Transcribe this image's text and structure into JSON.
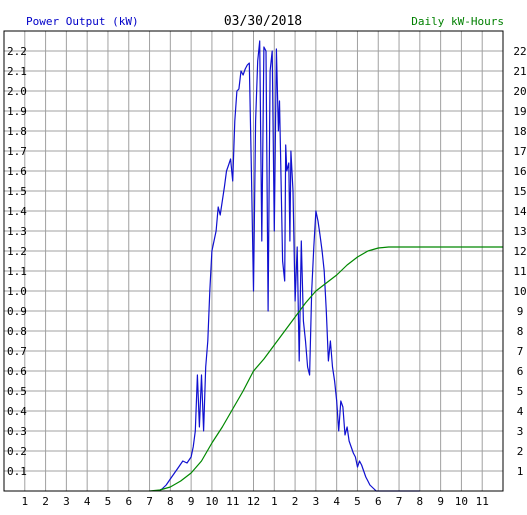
{
  "header": {
    "left_label": "Power Output (kW)",
    "date": "03/30/2018",
    "right_label": "Daily kW-Hours"
  },
  "colors": {
    "power": "#1010d0",
    "energy": "#008800",
    "left_label": "#0000c8",
    "right_label": "#008000",
    "grid": "#a0a0a0",
    "frame": "#000000"
  },
  "chart_data": {
    "type": "line",
    "grid": true,
    "x_tick_labels": [
      "1",
      "2",
      "3",
      "4",
      "5",
      "6",
      "7",
      "8",
      "9",
      "10",
      "11",
      "12",
      "1",
      "2",
      "3",
      "4",
      "5",
      "6",
      "7",
      "8",
      "9",
      "10",
      "11"
    ],
    "y_left": {
      "label": "Power Output (kW)",
      "range": [
        0,
        2.3
      ],
      "tick_labels": [
        "0.1",
        "0.2",
        "0.3",
        "0.4",
        "0.5",
        "0.6",
        "0.7",
        "0.8",
        "0.9",
        "1.0",
        "1.1",
        "1.2",
        "1.3",
        "1.4",
        "1.5",
        "1.6",
        "1.7",
        "1.8",
        "1.9",
        "2.0",
        "2.1",
        "2.2"
      ]
    },
    "y_right": {
      "label": "Daily kW-Hours",
      "range": [
        0,
        23
      ],
      "tick_labels": [
        "1",
        "2",
        "3",
        "4",
        "5",
        "6",
        "7",
        "8",
        "9",
        "10",
        "11",
        "12",
        "13",
        "14",
        "15",
        "16",
        "17",
        "18",
        "19",
        "20",
        "21",
        "22"
      ]
    },
    "series": [
      {
        "name": "Power Output (kW)",
        "axis": "left",
        "x_hours": [
          7.4,
          7.6,
          7.8,
          8.0,
          8.2,
          8.4,
          8.6,
          8.8,
          9.0,
          9.1,
          9.2,
          9.3,
          9.4,
          9.5,
          9.6,
          9.7,
          9.8,
          9.9,
          10.0,
          10.1,
          10.2,
          10.3,
          10.4,
          10.5,
          10.6,
          10.7,
          10.8,
          10.9,
          11.0,
          11.1,
          11.2,
          11.3,
          11.4,
          11.5,
          11.6,
          11.7,
          11.8,
          11.9,
          12.0,
          12.1,
          12.2,
          12.3,
          12.4,
          12.5,
          12.6,
          12.7,
          12.8,
          12.9,
          13.0,
          13.1,
          13.2,
          13.25,
          13.3,
          13.4,
          13.5,
          13.55,
          13.6,
          13.7,
          13.75,
          13.8,
          13.9,
          14.0,
          14.1,
          14.2,
          14.3,
          14.4,
          14.5,
          14.6,
          14.7,
          14.8,
          14.9,
          15.0,
          15.1,
          15.2,
          15.3,
          15.4,
          15.5,
          15.6,
          15.7,
          15.8,
          15.9,
          16.0,
          16.1,
          16.2,
          16.3,
          16.4,
          16.5,
          16.6,
          16.7,
          16.8,
          16.9,
          17.0,
          17.1,
          17.2,
          17.3,
          17.4,
          17.5,
          17.6,
          17.7,
          17.8,
          17.9,
          18.0,
          18.1,
          18.2,
          18.3,
          18.4,
          18.5,
          18.6,
          18.7,
          18.8,
          18.9,
          19.0,
          19.1,
          19.2,
          19.3,
          19.4,
          19.5,
          19.6,
          19.8,
          20.0
        ],
        "values": [
          0.0,
          0.01,
          0.03,
          0.06,
          0.09,
          0.12,
          0.15,
          0.14,
          0.17,
          0.22,
          0.3,
          0.58,
          0.32,
          0.58,
          0.3,
          0.62,
          0.75,
          1.0,
          1.2,
          1.25,
          1.3,
          1.42,
          1.38,
          1.45,
          1.52,
          1.6,
          1.63,
          1.66,
          1.55,
          1.85,
          2.0,
          2.01,
          2.1,
          2.08,
          2.11,
          2.13,
          2.14,
          1.6,
          1.0,
          1.85,
          2.15,
          2.25,
          1.25,
          2.22,
          2.2,
          0.9,
          2.1,
          2.2,
          1.3,
          2.21,
          1.8,
          1.95,
          1.7,
          1.15,
          1.05,
          1.73,
          1.6,
          1.64,
          1.25,
          1.7,
          1.5,
          0.95,
          1.22,
          0.65,
          1.25,
          0.85,
          0.75,
          0.62,
          0.58,
          1.0,
          1.22,
          1.4,
          1.35,
          1.28,
          1.2,
          1.1,
          0.9,
          0.65,
          0.75,
          0.62,
          0.55,
          0.45,
          0.3,
          0.45,
          0.42,
          0.28,
          0.32,
          0.25,
          0.22,
          0.19,
          0.17,
          0.12,
          0.15,
          0.13,
          0.1,
          0.07,
          0.05,
          0.03,
          0.02,
          0.01,
          0.0,
          0.0,
          0.0,
          0.0,
          0.0,
          0.0,
          0.0,
          0.0,
          0.0,
          0.0,
          0.0,
          0.0,
          0.0,
          0.0,
          0.0,
          0.0,
          0.0,
          0.0,
          0.0,
          0.0
        ]
      },
      {
        "name": "Daily kW-Hours",
        "axis": "right",
        "x_hours": [
          7,
          7.5,
          8,
          8.5,
          9,
          9.5,
          10,
          10.5,
          11,
          11.5,
          12,
          12.5,
          13,
          13.5,
          14,
          14.5,
          15,
          15.5,
          16,
          16.5,
          17,
          17.5,
          18,
          18.5,
          19,
          19.5,
          20,
          21,
          22,
          23,
          24
        ],
        "values": [
          0,
          0.05,
          0.2,
          0.5,
          0.9,
          1.5,
          2.4,
          3.2,
          4.1,
          5.0,
          6.0,
          6.6,
          7.3,
          8.0,
          8.7,
          9.4,
          10.0,
          10.4,
          10.8,
          11.3,
          11.7,
          12.0,
          12.15,
          12.2,
          12.2,
          12.2,
          12.2,
          12.2,
          12.2,
          12.2,
          12.2
        ]
      }
    ]
  }
}
